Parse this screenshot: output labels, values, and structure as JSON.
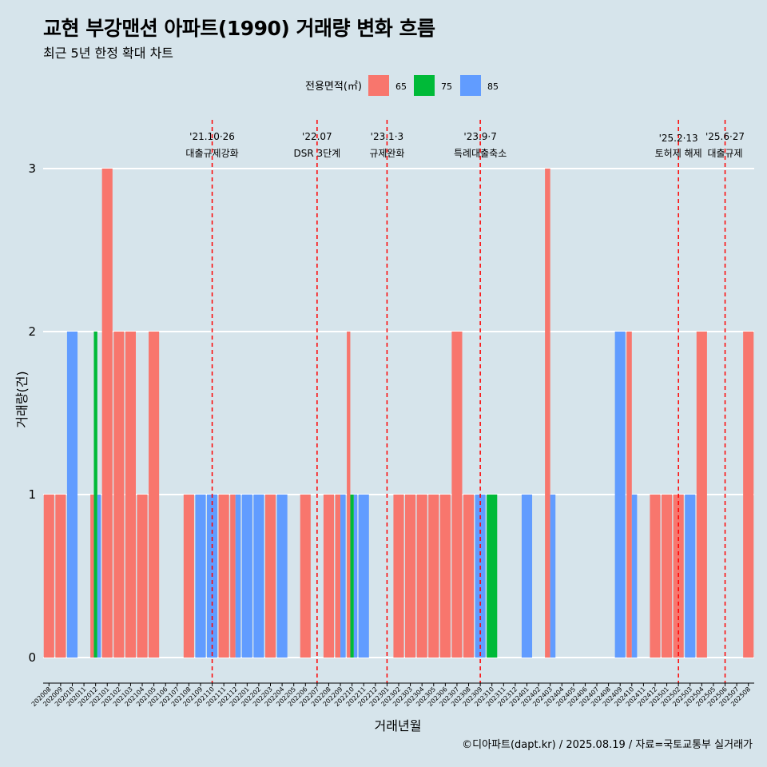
{
  "title": "교현 부강맨션 아파트(1990) 거래량 변화 흐름",
  "subtitle": "최근 5년 한정 확대 차트",
  "caption": "©디아파트(dapt.kr) / 2025.08.19 / 자료=국토교통부 실거래가",
  "colors": {
    "background": "#d6e4eb",
    "grid": "#ffffff",
    "event_line": "#ff0000",
    "65": "#f8766d",
    "75": "#00ba38",
    "85": "#619cff"
  },
  "chart_data": {
    "type": "bar",
    "stacking": "dodge",
    "xlabel": "거래년월",
    "ylabel": "거래량(건)",
    "ylim": [
      0,
      3
    ],
    "y_ticks": [
      0,
      1,
      2,
      3
    ],
    "legend": {
      "title": "전용면적(㎡)",
      "position": "top",
      "entries": [
        "65",
        "75",
        "85"
      ]
    },
    "grid": true,
    "categories": [
      "202008",
      "202009",
      "202010",
      "202011",
      "202012",
      "202101",
      "202102",
      "202103",
      "202104",
      "202105",
      "202106",
      "202107",
      "202108",
      "202109",
      "202110",
      "202111",
      "202112",
      "202201",
      "202202",
      "202203",
      "202204",
      "202205",
      "202206",
      "202207",
      "202208",
      "202209",
      "202210",
      "202211",
      "202212",
      "202301",
      "202302",
      "202303",
      "202304",
      "202305",
      "202306",
      "202307",
      "202308",
      "202309",
      "202310",
      "202311",
      "202312",
      "202401",
      "202402",
      "202403",
      "202404",
      "202405",
      "202406",
      "202407",
      "202408",
      "202409",
      "202410",
      "202411",
      "202412",
      "202501",
      "202502",
      "202503",
      "202504",
      "202505",
      "202506",
      "202507",
      "202508"
    ],
    "series": [
      {
        "name": "65",
        "values": [
          1,
          1,
          0,
          0,
          1,
          3,
          2,
          2,
          1,
          2,
          0,
          0,
          1,
          0,
          0,
          1,
          1,
          0,
          0,
          1,
          0,
          0,
          1,
          0,
          1,
          1,
          2,
          0,
          0,
          0,
          1,
          1,
          1,
          1,
          1,
          2,
          1,
          0,
          0,
          0,
          0,
          0,
          0,
          3,
          0,
          0,
          0,
          0,
          0,
          0,
          2,
          0,
          1,
          1,
          1,
          0,
          2,
          0,
          0,
          0,
          2
        ]
      },
      {
        "name": "75",
        "values": [
          0,
          0,
          0,
          0,
          2,
          0,
          0,
          0,
          0,
          0,
          0,
          0,
          0,
          0,
          0,
          0,
          0,
          0,
          0,
          0,
          0,
          0,
          0,
          0,
          0,
          0,
          1,
          0,
          0,
          0,
          0,
          0,
          0,
          0,
          0,
          0,
          0,
          0,
          1,
          0,
          0,
          0,
          0,
          0,
          0,
          0,
          0,
          0,
          0,
          0,
          0,
          0,
          0,
          0,
          0,
          0,
          0,
          0,
          0,
          0,
          0
        ]
      },
      {
        "name": "85",
        "values": [
          0,
          0,
          2,
          0,
          1,
          0,
          0,
          0,
          0,
          0,
          0,
          0,
          0,
          1,
          1,
          0,
          1,
          1,
          1,
          0,
          1,
          0,
          0,
          0,
          0,
          1,
          1,
          1,
          0,
          0,
          0,
          0,
          0,
          0,
          0,
          0,
          0,
          1,
          0,
          0,
          0,
          1,
          0,
          1,
          0,
          0,
          0,
          0,
          0,
          2,
          1,
          0,
          0,
          0,
          0,
          1,
          0,
          0,
          0,
          0,
          0
        ]
      }
    ],
    "events": [
      {
        "category": "202110",
        "date_label": "'21.10·26",
        "label": "대출규제강화"
      },
      {
        "category": "202207",
        "date_label": "'22.07",
        "label": "DSR 3단계"
      },
      {
        "category": "202301",
        "date_label": "'23.1·3",
        "label": "규제완화"
      },
      {
        "category": "202309",
        "date_label": "'23.9·7",
        "label": "특례대출축소"
      },
      {
        "category": "202502",
        "date_label": "'25.2·13",
        "label": "토허제 해제"
      },
      {
        "category": "202506",
        "date_label": "'25.6·27",
        "label": "대출규제"
      }
    ]
  }
}
